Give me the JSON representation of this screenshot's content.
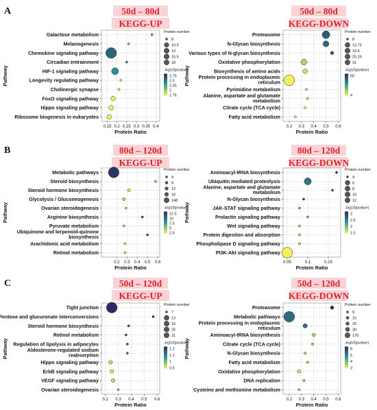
{
  "figure": {
    "ylabel": "Pathway",
    "xlabel": "Protein Ratio",
    "size_legend_title": "Protein number",
    "color_legend_title": "-log10(pvalue)"
  },
  "colors": {
    "header_text": "#e0212b",
    "header_bg": "#f7c9cc",
    "scale_low": "#f2f05e",
    "scale_mid": "#2f9c8f",
    "scale_high": "#2b2b63"
  },
  "chart_data": [
    {
      "type": "scatter",
      "panel_label": "A",
      "title": "50d – 80d",
      "subtitle": "KEGG-UP",
      "categories": [
        "Galactose metabolism",
        "Melanogenesis",
        "Chemokine signaling pathway",
        "Circadian entrainment",
        "HIF-1 signaling pathway",
        "Longevity regulating pathway",
        "Cholinergic synapse",
        "FoxO signaling pathway",
        "Hippo signaling pathway",
        "Ribosome biogenesis in eukaryotes"
      ],
      "x": [
        0.38,
        0.26,
        0.17,
        0.25,
        0.19,
        0.22,
        0.21,
        0.18,
        0.17,
        0.16
      ],
      "size": [
        8,
        8,
        18,
        8,
        13,
        8,
        8,
        10.5,
        10.5,
        10.5
      ],
      "color": [
        2.2,
        2.0,
        2.5,
        2.3,
        2.3,
        1.2,
        1.0,
        0.9,
        0.8,
        0.85
      ],
      "xlim": [
        0.12,
        0.42
      ],
      "xticks": [
        "0.15",
        "0.2",
        "0.25",
        "0.3",
        "0.35",
        "0.4"
      ],
      "xtick_vals": [
        0.15,
        0.2,
        0.25,
        0.3,
        0.35,
        0.4
      ],
      "size_legend": [
        "8",
        "10.5",
        "13",
        "15.5",
        "18"
      ],
      "size_vals": [
        8,
        10.5,
        13,
        15.5,
        18
      ],
      "size_range": [
        8,
        18
      ],
      "color_legend": [
        "2.75",
        "2.5",
        "2.25",
        "2",
        "1.75"
      ],
      "color_range": [
        1.75,
        2.75
      ]
    },
    {
      "type": "scatter",
      "panel_label": "",
      "title": "50d – 80d",
      "subtitle": "KEGG-DOWN",
      "categories": [
        "Proteasome",
        "N-Glycan biosynthesis",
        "Various types of N-glycan biosynthesis",
        "Oxidative phosphorylation",
        "Biosynthesis of amino acids",
        "Protein processing in endoplasmic reticulum",
        "Pyrimidine metabolism",
        "Alanine, aspartate and glutamate metabolism",
        "Citrate cycle (TCA cycle)",
        "Fatty acid metabolism"
      ],
      "x": [
        0.5,
        0.5,
        0.55,
        0.32,
        0.33,
        0.2,
        0.34,
        0.35,
        0.33,
        0.25
      ],
      "size": [
        21,
        16,
        10,
        16,
        13,
        31,
        8,
        8,
        8,
        8
      ],
      "color": [
        40,
        38,
        42,
        12,
        8,
        2,
        3,
        5,
        4,
        3
      ],
      "xlim": [
        0.15,
        0.62
      ],
      "xticks": [
        "0.2",
        "0.3",
        "0.4",
        "0.5",
        "0.6"
      ],
      "xtick_vals": [
        0.2,
        0.3,
        0.4,
        0.5,
        0.6
      ],
      "size_legend": [
        "8",
        "13.75",
        "19.5",
        "25.25",
        "31"
      ],
      "size_vals": [
        8,
        13.75,
        19.5,
        25.25,
        31
      ],
      "size_range": [
        8,
        31
      ],
      "color_legend": [
        "50",
        "4"
      ],
      "color_range": [
        4,
        50
      ]
    },
    {
      "type": "scatter",
      "panel_label": "B",
      "title": "80d – 120d",
      "subtitle": "KEGG-UP",
      "categories": [
        "Metabolic pathways",
        "Steroid biosynthesis",
        "Steroid hormone biosynthesis",
        "Glycolysis / Gluconeogenesis",
        "Ovarian steroidogenesis",
        "Arginine biosynthesis",
        "Pyruvate metabolism",
        "Ubiquinone and terpenoid-quinone biosynthesis",
        "Arachidonic acid metabolism",
        "Retinol metabolism"
      ],
      "x": [
        0.17,
        0.58,
        0.32,
        0.27,
        0.29,
        0.45,
        0.27,
        0.5,
        0.28,
        0.28
      ],
      "size": [
        148,
        4,
        8,
        8,
        4,
        4,
        4,
        4,
        4,
        4
      ],
      "color": [
        12,
        4,
        3,
        4,
        3,
        10,
        4,
        10,
        2.6,
        3
      ],
      "xlim": [
        0.05,
        0.62
      ],
      "xticks": [
        "0.2",
        "0.3",
        "0.4",
        "0.5",
        "0.6"
      ],
      "xtick_vals": [
        0.2,
        0.3,
        0.4,
        0.5,
        0.6
      ],
      "size_legend": [
        "4",
        "8",
        "12",
        "16",
        "148"
      ],
      "size_vals": [
        4,
        8,
        12,
        16,
        148
      ],
      "size_range": [
        4,
        148
      ],
      "color_legend": [
        "12.5",
        "10",
        "7.5",
        "5",
        "2.5"
      ],
      "color_range": [
        2.5,
        12.5
      ]
    },
    {
      "type": "scatter",
      "panel_label": "",
      "title": "80d – 120d",
      "subtitle": "KEGG-DOWN",
      "categories": [
        "Aminoacyl-tRNA biosynthesis",
        "Ubiquitin mediated proteolysis",
        "Alanine, aspartate and glutamate metabolism",
        "N-Glycan biosynthesis",
        "JAK-STAT signaling pathway",
        "Prolactin signaling pathway",
        "Wnt signaling pathway",
        "Protein digestion and absorption",
        "Phospholipase D signaling pathway",
        "PI3K-Akt signaling pathway"
      ],
      "x": [
        0.17,
        0.1,
        0.16,
        0.09,
        0.08,
        0.1,
        0.08,
        0.08,
        0.08,
        0.05
      ],
      "size": [
        4,
        8,
        4,
        4,
        4,
        4,
        4,
        4,
        4,
        12
      ],
      "color": [
        2.9,
        2.4,
        2.6,
        2.8,
        1.7,
        1.6,
        1.5,
        1.4,
        1.3,
        1.0
      ],
      "xlim": [
        0.04,
        0.18
      ],
      "xticks": [
        "0.05",
        "0.1",
        "0.15"
      ],
      "xtick_vals": [
        0.05,
        0.1,
        0.15
      ],
      "size_legend": [
        "4",
        "6",
        "8",
        "10",
        "12"
      ],
      "size_vals": [
        4,
        6,
        8,
        10,
        12
      ],
      "size_range": [
        4,
        12
      ],
      "color_legend": [
        "3",
        "2.5",
        "2",
        "1.5"
      ],
      "color_range": [
        1.2,
        3
      ]
    },
    {
      "type": "scatter",
      "panel_label": "C",
      "title": "50d – 120d",
      "subtitle": "KEGG-UP",
      "categories": [
        "Tight junction",
        "Pentose and glucuronate interconversions",
        "Steroid hormone biosynthesis",
        "Retinol metabolism",
        "Regulation of lipolysis in adipocytes",
        "Aldosterone-regulated sodium reabsorption",
        "Hippo signaling pathway",
        "ErbB signaling pathway",
        "VEGF signaling pathway",
        "Ovarian steroidogenesis"
      ],
      "x": [
        0.25,
        0.57,
        0.38,
        0.36,
        0.37,
        0.37,
        0.24,
        0.25,
        0.26,
        0.3
      ],
      "size": [
        31,
        7,
        7,
        7,
        7,
        7,
        10,
        10,
        10,
        7
      ],
      "color": [
        1.3,
        1.25,
        1.1,
        1.1,
        1.05,
        1.0,
        0.5,
        0.45,
        0.5,
        0.6
      ],
      "xlim": [
        0.17,
        0.62
      ],
      "xticks": [
        "0.2",
        "0.3",
        "0.4",
        "0.5",
        "0.6"
      ],
      "xtick_vals": [
        0.2,
        0.3,
        0.4,
        0.5,
        0.6
      ],
      "size_legend": [
        "7",
        "13",
        "19",
        "25",
        "31"
      ],
      "size_vals": [
        7,
        13,
        19,
        25,
        31
      ],
      "size_range": [
        7,
        31
      ],
      "color_legend": [
        "1.2",
        "1.1",
        "1",
        "0.5"
      ],
      "color_range": [
        0.4,
        1.3
      ]
    },
    {
      "type": "scatter",
      "panel_label": "",
      "title": "50d – 120d",
      "subtitle": "KEGG-DOWN",
      "categories": [
        "Proteasome",
        "Metabolic pathways",
        "Protein processing in endoplasmic reticulum",
        "Aminoacyl-tRNA biosynthesis",
        "Citrate cycle (TCA cycle)",
        "N-Glycan biosynthesis",
        "Fatty acid metabolism",
        "Oxidative phosphorylation",
        "DNA replication",
        "Cysteine and methionine metabolism"
      ],
      "x": [
        0.55,
        0.2,
        0.33,
        0.4,
        0.39,
        0.33,
        0.35,
        0.28,
        0.32,
        0.28
      ],
      "size": [
        20,
        176,
        30,
        20,
        10,
        10,
        10,
        20,
        10,
        10
      ],
      "color": [
        8,
        6,
        6,
        2,
        2,
        2,
        1.8,
        1.5,
        2,
        2
      ],
      "xlim": [
        0.15,
        0.62
      ],
      "xticks": [
        "0.2",
        "0.3",
        "0.4",
        "0.5",
        "0.6"
      ],
      "xtick_vals": [
        0.2,
        0.3,
        0.4,
        0.5,
        0.6
      ],
      "size_legend": [
        "9",
        "15",
        "20",
        "30",
        "176"
      ],
      "size_vals": [
        9,
        15,
        20,
        30,
        176
      ],
      "size_range": [
        9,
        176
      ],
      "color_legend": [
        "8",
        "6",
        "4",
        "2"
      ],
      "color_range": [
        1,
        8
      ]
    }
  ]
}
